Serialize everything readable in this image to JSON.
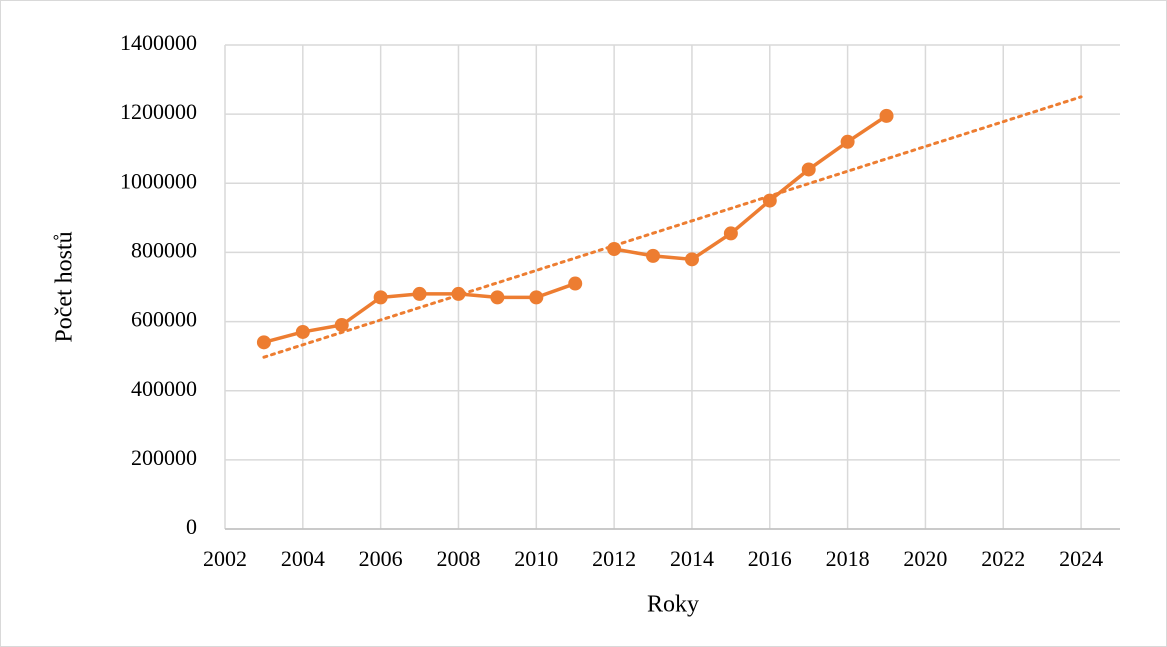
{
  "chart_data": {
    "type": "line",
    "x_label": "Roky",
    "y_label": "Počet hostů",
    "series": [
      {
        "color": "#ed7d31",
        "x": [
          2003,
          2004,
          2005,
          2006,
          2007,
          2008,
          2009,
          2010,
          2011
        ],
        "values": [
          540000,
          570000,
          590000,
          670000,
          680000,
          680000,
          670000,
          670000,
          710000
        ],
        "markers": true
      },
      {
        "color": "#ed7d31",
        "x": [
          2012,
          2013,
          2014,
          2015,
          2016,
          2017,
          2018,
          2019
        ],
        "values": [
          810000,
          790000,
          780000,
          855000,
          950000,
          1040000,
          1120000,
          1195000
        ],
        "markers": true
      },
      {
        "color": "#ed7d31",
        "x": [
          2003,
          2024
        ],
        "values": [
          497000,
          1250000
        ],
        "dotted": true
      }
    ],
    "xlim": [
      2002,
      2025
    ],
    "xticks": [
      2002,
      2004,
      2006,
      2008,
      2010,
      2012,
      2014,
      2016,
      2018,
      2020,
      2022,
      2024
    ],
    "ylim": [
      0,
      1400000
    ],
    "yticks": [
      0,
      200000,
      400000,
      600000,
      800000,
      1000000,
      1200000,
      1400000
    ],
    "grid": true
  }
}
